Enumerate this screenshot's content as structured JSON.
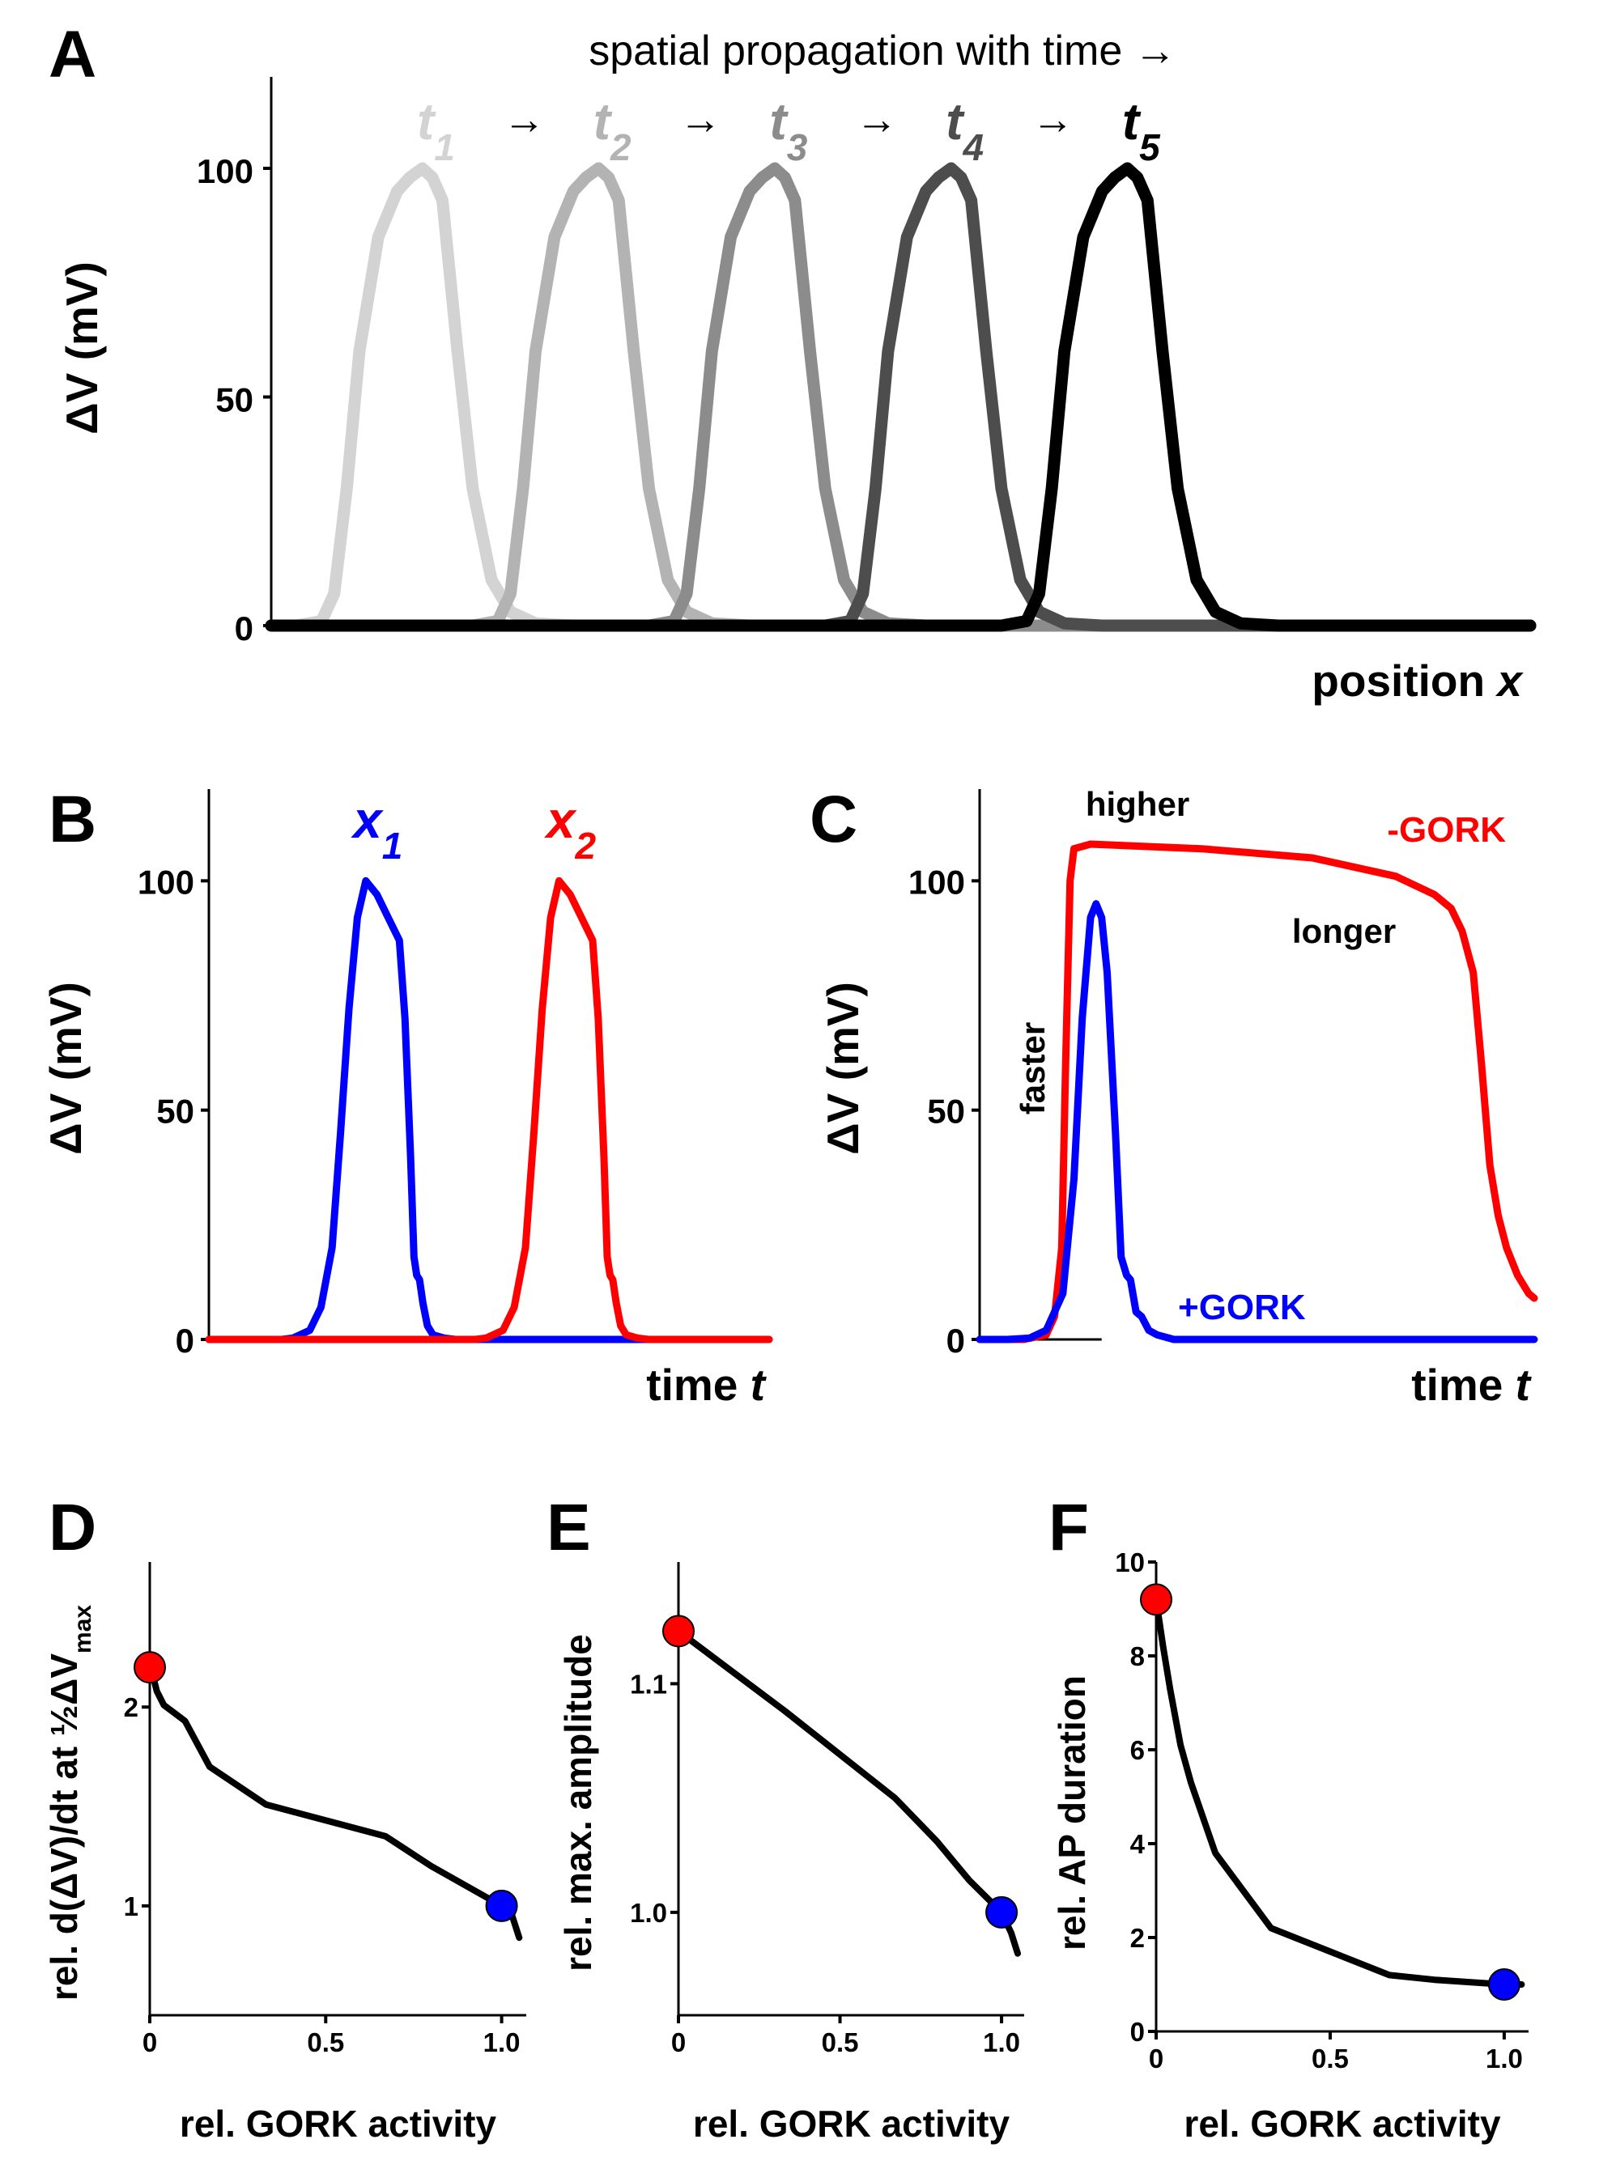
{
  "chart_data": [
    {
      "id": "A",
      "type": "line",
      "panel_label": "A",
      "title": "spatial propagation with time →",
      "xlabel": "position x",
      "ylabel": "ΔV (mV)",
      "xlim": [
        0,
        100
      ],
      "ylim": [
        0,
        120
      ],
      "yticks": [
        0,
        50,
        100
      ],
      "ytick_labels": [
        "0",
        "50",
        "100"
      ],
      "time_arrows": [
        "→",
        "→",
        "→",
        "→"
      ],
      "series": [
        {
          "name": "t1",
          "label_main": "t",
          "label_sub": "1",
          "color": "#d3d3d3",
          "offset": 0
        },
        {
          "name": "t2",
          "label_main": "t",
          "label_sub": "2",
          "color": "#b3b3b3",
          "offset": 14
        },
        {
          "name": "t3",
          "label_main": "t",
          "label_sub": "3",
          "color": "#8c8c8c",
          "offset": 28
        },
        {
          "name": "t4",
          "label_main": "t",
          "label_sub": "4",
          "color": "#4d4d4d",
          "offset": 42
        },
        {
          "name": "t5",
          "label_main": "t",
          "label_sub": "5",
          "color": "#000000",
          "offset": 56
        }
      ],
      "base_profile": {
        "x": [
          0,
          2,
          4,
          5,
          6,
          7,
          8.5,
          10,
          11,
          12,
          12.8,
          13.6,
          14.8,
          16,
          17.5,
          19,
          21,
          24,
          100
        ],
        "y": [
          0,
          0,
          1,
          7,
          30,
          60,
          85,
          95,
          98,
          100,
          98,
          93,
          60,
          30,
          10,
          3,
          0.5,
          0,
          0
        ]
      }
    },
    {
      "id": "B",
      "type": "line",
      "panel_label": "B",
      "xlabel": "time t",
      "ylabel": "ΔV (mV)",
      "xlim": [
        0,
        100
      ],
      "ylim": [
        0,
        120
      ],
      "yticks": [
        0,
        50,
        100
      ],
      "ytick_labels": [
        "0",
        "50",
        "100"
      ],
      "series": [
        {
          "name": "x1",
          "label_main": "x",
          "label_sub": "1",
          "color": "#0000ff",
          "offset": 0
        },
        {
          "name": "x2",
          "label_main": "x",
          "label_sub": "2",
          "color": "#ff0000",
          "offset": 34.5
        }
      ],
      "base_profile": {
        "x": [
          0,
          10,
          13,
          15,
          18,
          20,
          22,
          23.5,
          25,
          26.5,
          28,
          30,
          32,
          34,
          35,
          36,
          36.6,
          37.1,
          37.6,
          38.2,
          39,
          40,
          42,
          44,
          48,
          100
        ],
        "y": [
          0,
          0,
          0,
          0.3,
          2,
          7,
          20,
          45,
          72,
          92,
          100,
          97,
          92,
          87,
          70,
          40,
          18,
          14,
          13,
          8,
          3,
          1,
          0.3,
          0,
          0,
          0
        ]
      }
    },
    {
      "id": "C",
      "type": "line",
      "panel_label": "C",
      "xlabel": "time t",
      "ylabel": "ΔV (mV)",
      "xlim": [
        0,
        100
      ],
      "ylim": [
        0,
        120
      ],
      "yticks": [
        0,
        50,
        100
      ],
      "ytick_labels": [
        "0",
        "50",
        "100"
      ],
      "annotations": [
        "higher",
        "longer",
        "faster"
      ],
      "series": [
        {
          "name": "-GORK",
          "label": "-GORK",
          "color": "#ff0000",
          "x": [
            0,
            8,
            12,
            13.5,
            14.8,
            15.5,
            16.3,
            17,
            20,
            40,
            60,
            75,
            82,
            85,
            87,
            89,
            90.5,
            92,
            93.5,
            95,
            97,
            99,
            100
          ],
          "y": [
            0,
            0,
            1,
            5,
            20,
            60,
            100,
            107,
            108,
            107,
            105,
            101,
            97,
            94,
            89,
            80,
            60,
            38,
            27,
            20,
            14,
            10,
            9
          ]
        },
        {
          "name": "+GORK",
          "label": "+GORK",
          "color": "#0000ff",
          "x": [
            0,
            5,
            9,
            12,
            15,
            17,
            18.5,
            20,
            21,
            22,
            23,
            24.5,
            25.5,
            26.5,
            27.2,
            28.2,
            29.2,
            30.5,
            32,
            35,
            40,
            100
          ],
          "y": [
            0,
            0,
            0.3,
            2,
            10,
            35,
            70,
            92,
            95,
            92,
            80,
            45,
            18,
            14,
            13,
            6,
            5,
            2,
            1,
            0,
            0,
            0
          ]
        }
      ]
    },
    {
      "id": "D",
      "type": "line",
      "panel_label": "D",
      "xlabel": "rel. GORK activity",
      "ylabel_main": "rel. d(ΔV)/dt at ½ΔV",
      "ylabel_sub": "max",
      "xlim": [
        0,
        1.07
      ],
      "ylim": [
        0.45,
        2.75
      ],
      "xticks": [
        0,
        0.5,
        1.0
      ],
      "xtick_labels": [
        "0",
        "0.5",
        "1.0"
      ],
      "yticks": [
        1,
        2
      ],
      "ytick_labels": [
        "1",
        "2"
      ],
      "series": [
        {
          "name": "curve",
          "color": "#000000",
          "x": [
            0,
            0.02,
            0.04,
            0.07,
            0.1,
            0.17,
            0.33,
            0.5,
            0.67,
            0.8,
            0.9,
            1.0,
            1.03,
            1.05
          ],
          "y": [
            2.22,
            2.08,
            2.01,
            1.97,
            1.93,
            1.7,
            1.51,
            1.43,
            1.35,
            1.2,
            1.1,
            1.0,
            0.95,
            0.84
          ]
        }
      ],
      "markers": [
        {
          "name": "-GORK",
          "x": 0,
          "y": 2.2,
          "color": "#ff0000"
        },
        {
          "name": "+GORK",
          "x": 1.0,
          "y": 1.0,
          "color": "#0000ff"
        }
      ]
    },
    {
      "id": "E",
      "type": "line",
      "panel_label": "E",
      "xlabel": "rel. GORK activity",
      "ylabel": "rel. max. amplitude",
      "xlim": [
        0,
        1.07
      ],
      "ylim": [
        0.955,
        1.155
      ],
      "xticks": [
        0,
        0.5,
        1.0
      ],
      "xtick_labels": [
        "0",
        "0.5",
        "1.0"
      ],
      "yticks": [
        1.0,
        1.1
      ],
      "ytick_labels": [
        "1.0",
        "1.1"
      ],
      "series": [
        {
          "name": "curve",
          "color": "#000000",
          "x": [
            0,
            0.33,
            0.67,
            0.8,
            0.9,
            1.0,
            1.03,
            1.05
          ],
          "y": [
            1.123,
            1.088,
            1.05,
            1.031,
            1.014,
            1.0,
            0.991,
            0.982
          ]
        }
      ],
      "markers": [
        {
          "name": "-GORK",
          "x": 0,
          "y": 1.123,
          "color": "#ff0000"
        },
        {
          "name": "+GORK",
          "x": 1.0,
          "y": 1.0,
          "color": "#0000ff"
        }
      ]
    },
    {
      "id": "F",
      "type": "line",
      "panel_label": "F",
      "xlabel": "rel. GORK activity",
      "ylabel": "rel. AP duration",
      "xlim": [
        0,
        1.07
      ],
      "ylim": [
        0,
        10
      ],
      "xticks": [
        0,
        0.5,
        1.0
      ],
      "xtick_labels": [
        "0",
        "0.5",
        "1.0"
      ],
      "yticks": [
        0,
        2,
        4,
        6,
        8,
        10
      ],
      "ytick_labels": [
        "0",
        "2",
        "4",
        "6",
        "8",
        "10"
      ],
      "series": [
        {
          "name": "curve",
          "color": "#000000",
          "x": [
            0,
            0.02,
            0.04,
            0.07,
            0.1,
            0.17,
            0.33,
            0.5,
            0.67,
            0.8,
            0.9,
            1.0,
            1.05
          ],
          "y": [
            9.2,
            8.2,
            7.3,
            6.1,
            5.3,
            3.8,
            2.2,
            1.7,
            1.2,
            1.1,
            1.05,
            1.0,
            1.0
          ]
        }
      ],
      "markers": [
        {
          "name": "-GORK",
          "x": 0,
          "y": 9.2,
          "color": "#ff0000"
        },
        {
          "name": "+GORK",
          "x": 1.0,
          "y": 1.0,
          "color": "#0000ff"
        }
      ]
    }
  ]
}
